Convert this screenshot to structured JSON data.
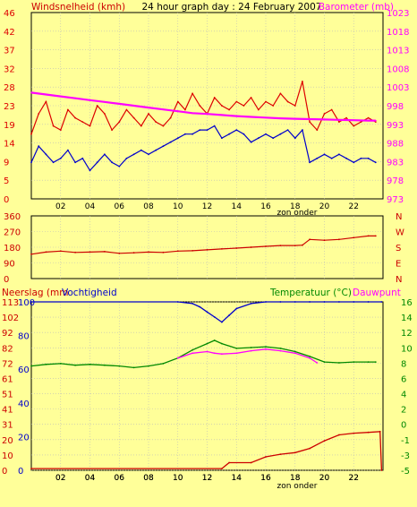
{
  "header": {
    "title": "24 hour graph day : 24 February 2007",
    "left_label": "Windsnelheid (kmh)",
    "right_label": "Barometer (mb)"
  },
  "colors": {
    "background": "#ffff99",
    "wind": "#dd0000",
    "gust": "#0000cc",
    "barometer": "#ff00ff",
    "wind_dir": "#cc0000",
    "rain": "#cc0000",
    "humidity": "#0000cc",
    "temperature": "#008800",
    "dewpoint": "#ff00ff",
    "axis": "#000000",
    "grid": "#bbbbbb"
  },
  "x_ticks": [
    "02",
    "04",
    "06",
    "08",
    "10",
    "12",
    "14",
    "16",
    "18",
    "20",
    "22"
  ],
  "x_footer": "zon onder",
  "chart_data": [
    {
      "type": "line",
      "name": "wind-barometer",
      "y_left_ticks": [
        "0",
        "5",
        "9",
        "14",
        "19",
        "23",
        "28",
        "32",
        "37",
        "42",
        "46"
      ],
      "y_right_ticks": [
        "973",
        "978",
        "983",
        "988",
        "993",
        "998",
        "1003",
        "1008",
        "1013",
        "1018",
        "1023"
      ],
      "ylim_left": [
        0,
        46
      ],
      "ylim_right": [
        973,
        1023
      ],
      "xlim": [
        0,
        24
      ],
      "series": [
        {
          "key": "wind",
          "x": [
            0,
            0.5,
            1,
            1.5,
            2,
            2.5,
            3,
            3.5,
            4,
            4.5,
            5,
            5.5,
            6,
            6.5,
            7,
            7.5,
            8,
            8.5,
            9,
            9.5,
            10,
            10.5,
            11,
            11.5,
            12,
            12.5,
            13,
            13.5,
            14,
            14.5,
            15,
            15.5,
            16,
            16.5,
            17,
            17.5,
            18,
            18.5,
            19,
            19.5,
            20,
            20.5,
            21,
            21.5,
            22,
            22.5,
            23,
            23.5
          ],
          "values": [
            16,
            21,
            24,
            18,
            17,
            22,
            20,
            19,
            18,
            23,
            21,
            17,
            19,
            22,
            20,
            18,
            21,
            19,
            18,
            20,
            24,
            22,
            26,
            23,
            21,
            25,
            23,
            22,
            24,
            23,
            25,
            22,
            24,
            23,
            26,
            24,
            23,
            29,
            19,
            17,
            21,
            22,
            19,
            20,
            18,
            19,
            20,
            19
          ]
        },
        {
          "key": "gust",
          "x": [
            0,
            0.5,
            1,
            1.5,
            2,
            2.5,
            3,
            3.5,
            4,
            4.5,
            5,
            5.5,
            6,
            6.5,
            7,
            7.5,
            8,
            8.5,
            9,
            9.5,
            10,
            10.5,
            11,
            11.5,
            12,
            12.5,
            13,
            13.5,
            14,
            14.5,
            15,
            15.5,
            16,
            16.5,
            17,
            17.5,
            18,
            18.5,
            19,
            19.5,
            20,
            20.5,
            21,
            21.5,
            22,
            22.5,
            23,
            23.5
          ],
          "values": [
            9,
            13,
            11,
            9,
            10,
            12,
            9,
            10,
            7,
            9,
            11,
            9,
            8,
            10,
            11,
            12,
            11,
            12,
            13,
            14,
            15,
            16,
            16,
            17,
            17,
            18,
            15,
            16,
            17,
            16,
            14,
            15,
            16,
            15,
            16,
            17,
            15,
            17,
            9,
            10,
            11,
            10,
            11,
            10,
            9,
            10,
            10,
            9
          ]
        },
        {
          "key": "barometer",
          "x": [
            0,
            1,
            2,
            3,
            4,
            5,
            6,
            7,
            8,
            9,
            10,
            11,
            12,
            13,
            14,
            15,
            16,
            17,
            18,
            19,
            20,
            21,
            22,
            23,
            23.5
          ],
          "values": [
            1001.5,
            1001,
            1000.5,
            1000,
            999.5,
            999,
            998.5,
            998,
            997.5,
            997,
            996.5,
            996,
            995.8,
            995.5,
            995.2,
            995,
            994.8,
            994.6,
            994.5,
            994.4,
            994.3,
            994.2,
            994.1,
            994,
            994
          ]
        }
      ]
    },
    {
      "type": "line",
      "name": "wind-direction",
      "y_left_ticks": [
        "0",
        "90",
        "180",
        "270",
        "360"
      ],
      "y_right_ticks": [
        "N",
        "E",
        "S",
        "W",
        "N"
      ],
      "ylim_left": [
        0,
        360
      ],
      "xlim": [
        0,
        24
      ],
      "series": [
        {
          "key": "wind_dir",
          "x": [
            0,
            1,
            2,
            3,
            4,
            5,
            6,
            7,
            8,
            9,
            10,
            11,
            12,
            13,
            14,
            15,
            16,
            17,
            18,
            18.5,
            19,
            20,
            21,
            22,
            23,
            23.5
          ],
          "values": [
            140,
            152,
            158,
            150,
            152,
            155,
            145,
            148,
            152,
            150,
            158,
            160,
            165,
            170,
            175,
            180,
            185,
            190,
            190,
            192,
            225,
            220,
            225,
            235,
            245,
            245
          ]
        }
      ]
    },
    {
      "type": "line",
      "name": "rain-humidity-temperature",
      "y_left_ticks": [
        "0",
        "20",
        "40",
        "60",
        "80",
        "100"
      ],
      "y_rain_ticks": [
        "0",
        "10",
        "20",
        "31",
        "41",
        "51",
        "61",
        "72",
        "82",
        "92",
        "102",
        "113"
      ],
      "y_right_ticks": [
        "-5",
        "-3",
        "-1",
        "0",
        "2",
        "4",
        "6",
        "8",
        "10",
        "12",
        "14",
        "16"
      ],
      "left_label_rain": "Neerslag (mm",
      "left_label_hum": "Vochtigheid",
      "right_label_temp": "Temperatuur (°C)",
      "right_label_dew": "Dauwpunt",
      "ylim_left": [
        0,
        100
      ],
      "ylim_right": [
        -5,
        16
      ],
      "xlim": [
        0,
        24
      ],
      "series": [
        {
          "key": "rain",
          "x": [
            0,
            13,
            13.5,
            15,
            16,
            17,
            18,
            19,
            20,
            21,
            22,
            23,
            23.8,
            23.9
          ],
          "values": [
            1,
            1,
            4.5,
            4.5,
            8,
            9.5,
            10.5,
            13,
            17.5,
            21,
            22,
            22.5,
            23,
            0
          ]
        },
        {
          "key": "humidity",
          "x": [
            0,
            10,
            11,
            11.5,
            12,
            12.5,
            13,
            13.5,
            14,
            15,
            16,
            17,
            18,
            19,
            20,
            21,
            22,
            23,
            23.9
          ],
          "values": [
            100,
            100,
            99,
            97,
            94,
            91,
            88,
            92,
            96,
            99,
            100,
            100,
            100,
            100,
            100,
            100,
            100,
            100,
            100
          ]
        },
        {
          "key": "temperature",
          "x": [
            0,
            1,
            2,
            3,
            4,
            5,
            6,
            7,
            8,
            9,
            10,
            11,
            12,
            12.5,
            13,
            14,
            15,
            16,
            17,
            18,
            19,
            20,
            21,
            22,
            23,
            23.5
          ],
          "values": [
            8,
            8.2,
            8.3,
            8.1,
            8.2,
            8.1,
            8.0,
            7.8,
            8.0,
            8.3,
            9.0,
            10.0,
            10.8,
            11.2,
            10.8,
            10.2,
            10.3,
            10.4,
            10.2,
            9.8,
            9.2,
            8.5,
            8.4,
            8.5,
            8.5,
            8.5
          ]
        },
        {
          "key": "dewpoint",
          "x": [
            10,
            11,
            12,
            12.5,
            13,
            14,
            15,
            16,
            17,
            18,
            19,
            19.5
          ],
          "values": [
            9.0,
            9.6,
            9.8,
            9.6,
            9.5,
            9.6,
            9.9,
            10.1,
            9.9,
            9.6,
            9.0,
            8.4
          ]
        }
      ]
    }
  ]
}
